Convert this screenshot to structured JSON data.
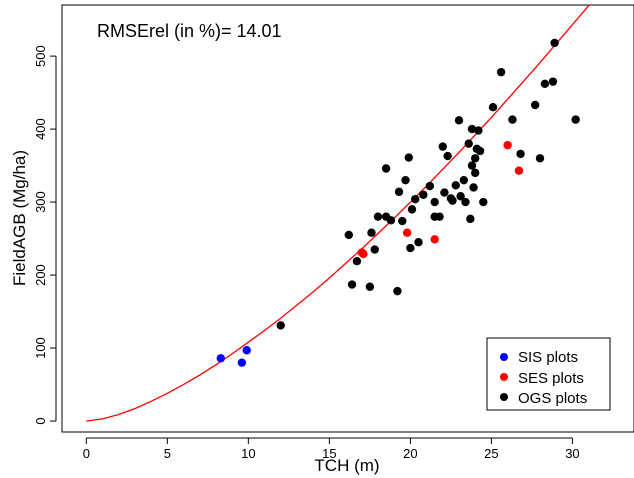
{
  "chart_data": {
    "type": "scatter",
    "xlabel": "TCH (m)",
    "ylabel": "FieldAGB (Mg/ha)",
    "annotation": "RMSErel (in %)= 14.01",
    "xlim": [
      -1.5,
      33.8
    ],
    "ylim": [
      -15,
      570
    ],
    "xticks": [
      0,
      5,
      10,
      15,
      20,
      25,
      30
    ],
    "yticks": [
      0,
      100,
      200,
      300,
      400,
      500
    ],
    "grid": false,
    "legend_position": "bottom-right",
    "series": [
      {
        "name": "SIS plots",
        "color": "#0000ff",
        "x": [
          8.3,
          9.6,
          9.9
        ],
        "y": [
          86,
          80,
          97
        ]
      },
      {
        "name": "SES plots",
        "color": "#ff0000",
        "x": [
          17.0,
          17.1,
          19.8,
          21.5,
          26.0,
          26.7
        ],
        "y": [
          231,
          229,
          258,
          249,
          378,
          343
        ]
      },
      {
        "name": "OGS plots",
        "color": "#000000",
        "x": [
          12.0,
          16.2,
          16.4,
          16.7,
          17.5,
          17.6,
          17.8,
          18.0,
          18.5,
          18.5,
          18.8,
          19.2,
          19.3,
          19.5,
          19.7,
          19.9,
          20.0,
          20.1,
          20.3,
          20.5,
          20.8,
          21.2,
          21.5,
          21.5,
          21.8,
          22.0,
          22.1,
          22.3,
          22.5,
          22.6,
          22.8,
          23.0,
          23.1,
          23.3,
          23.4,
          23.6,
          23.7,
          23.8,
          23.8,
          23.9,
          24.0,
          24.0,
          24.1,
          24.2,
          24.3,
          24.5,
          25.1,
          25.6,
          26.3,
          26.8,
          27.7,
          28.0,
          28.3,
          28.8,
          28.9,
          30.2
        ],
        "y": [
          131,
          255,
          187,
          219,
          184,
          258,
          235,
          280,
          346,
          280,
          275,
          178,
          314,
          274,
          330,
          361,
          237,
          290,
          304,
          245,
          310,
          322,
          280,
          300,
          280,
          376,
          313,
          363,
          305,
          302,
          323,
          412,
          308,
          330,
          300,
          380,
          277,
          350,
          400,
          320,
          360,
          340,
          373,
          398,
          370,
          300,
          430,
          478,
          413,
          366,
          433,
          360,
          462,
          465,
          518,
          413
        ]
      },
      {
        "name": "",
        "type": "line",
        "color": "#ff0000",
        "x": [
          0,
          1,
          2,
          3,
          4,
          5,
          6,
          7,
          8,
          9,
          10,
          11,
          12,
          13,
          14,
          15,
          16,
          17,
          18,
          19,
          20,
          21,
          22,
          23,
          24,
          25,
          26,
          27,
          28,
          29,
          30,
          31,
          32,
          33
        ],
        "y": [
          0,
          3,
          9,
          17,
          27,
          38,
          50,
          63,
          77,
          92,
          108,
          124,
          141,
          159,
          177,
          196,
          216,
          236,
          257,
          278,
          300,
          322,
          345,
          368,
          392,
          416,
          441,
          466,
          491,
          517,
          543,
          569,
          596,
          623
        ]
      }
    ]
  }
}
